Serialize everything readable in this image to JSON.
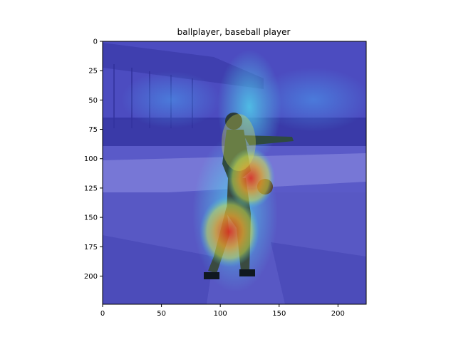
{
  "figure": {
    "title": "ballplayer, baseball player"
  },
  "image_description": {
    "subject": "vintage photo of a baseball pitcher winding up on a field",
    "overlay": "jet-colormap saliency heatmap, hottest (red) on the player's torso and legs"
  },
  "axes": {
    "x": {
      "ticks": [
        0,
        50,
        100,
        150,
        200
      ],
      "range": [
        0,
        224
      ]
    },
    "y": {
      "ticks": [
        0,
        25,
        50,
        75,
        100,
        125,
        150,
        175,
        200
      ],
      "range": [
        0,
        224
      ],
      "inverted": true
    }
  },
  "colors": {
    "heat_low": "#3a3ad8",
    "heat_mid": "#3ac8e0",
    "heat_warm": "#d8e040",
    "heat_high": "#e03020"
  }
}
